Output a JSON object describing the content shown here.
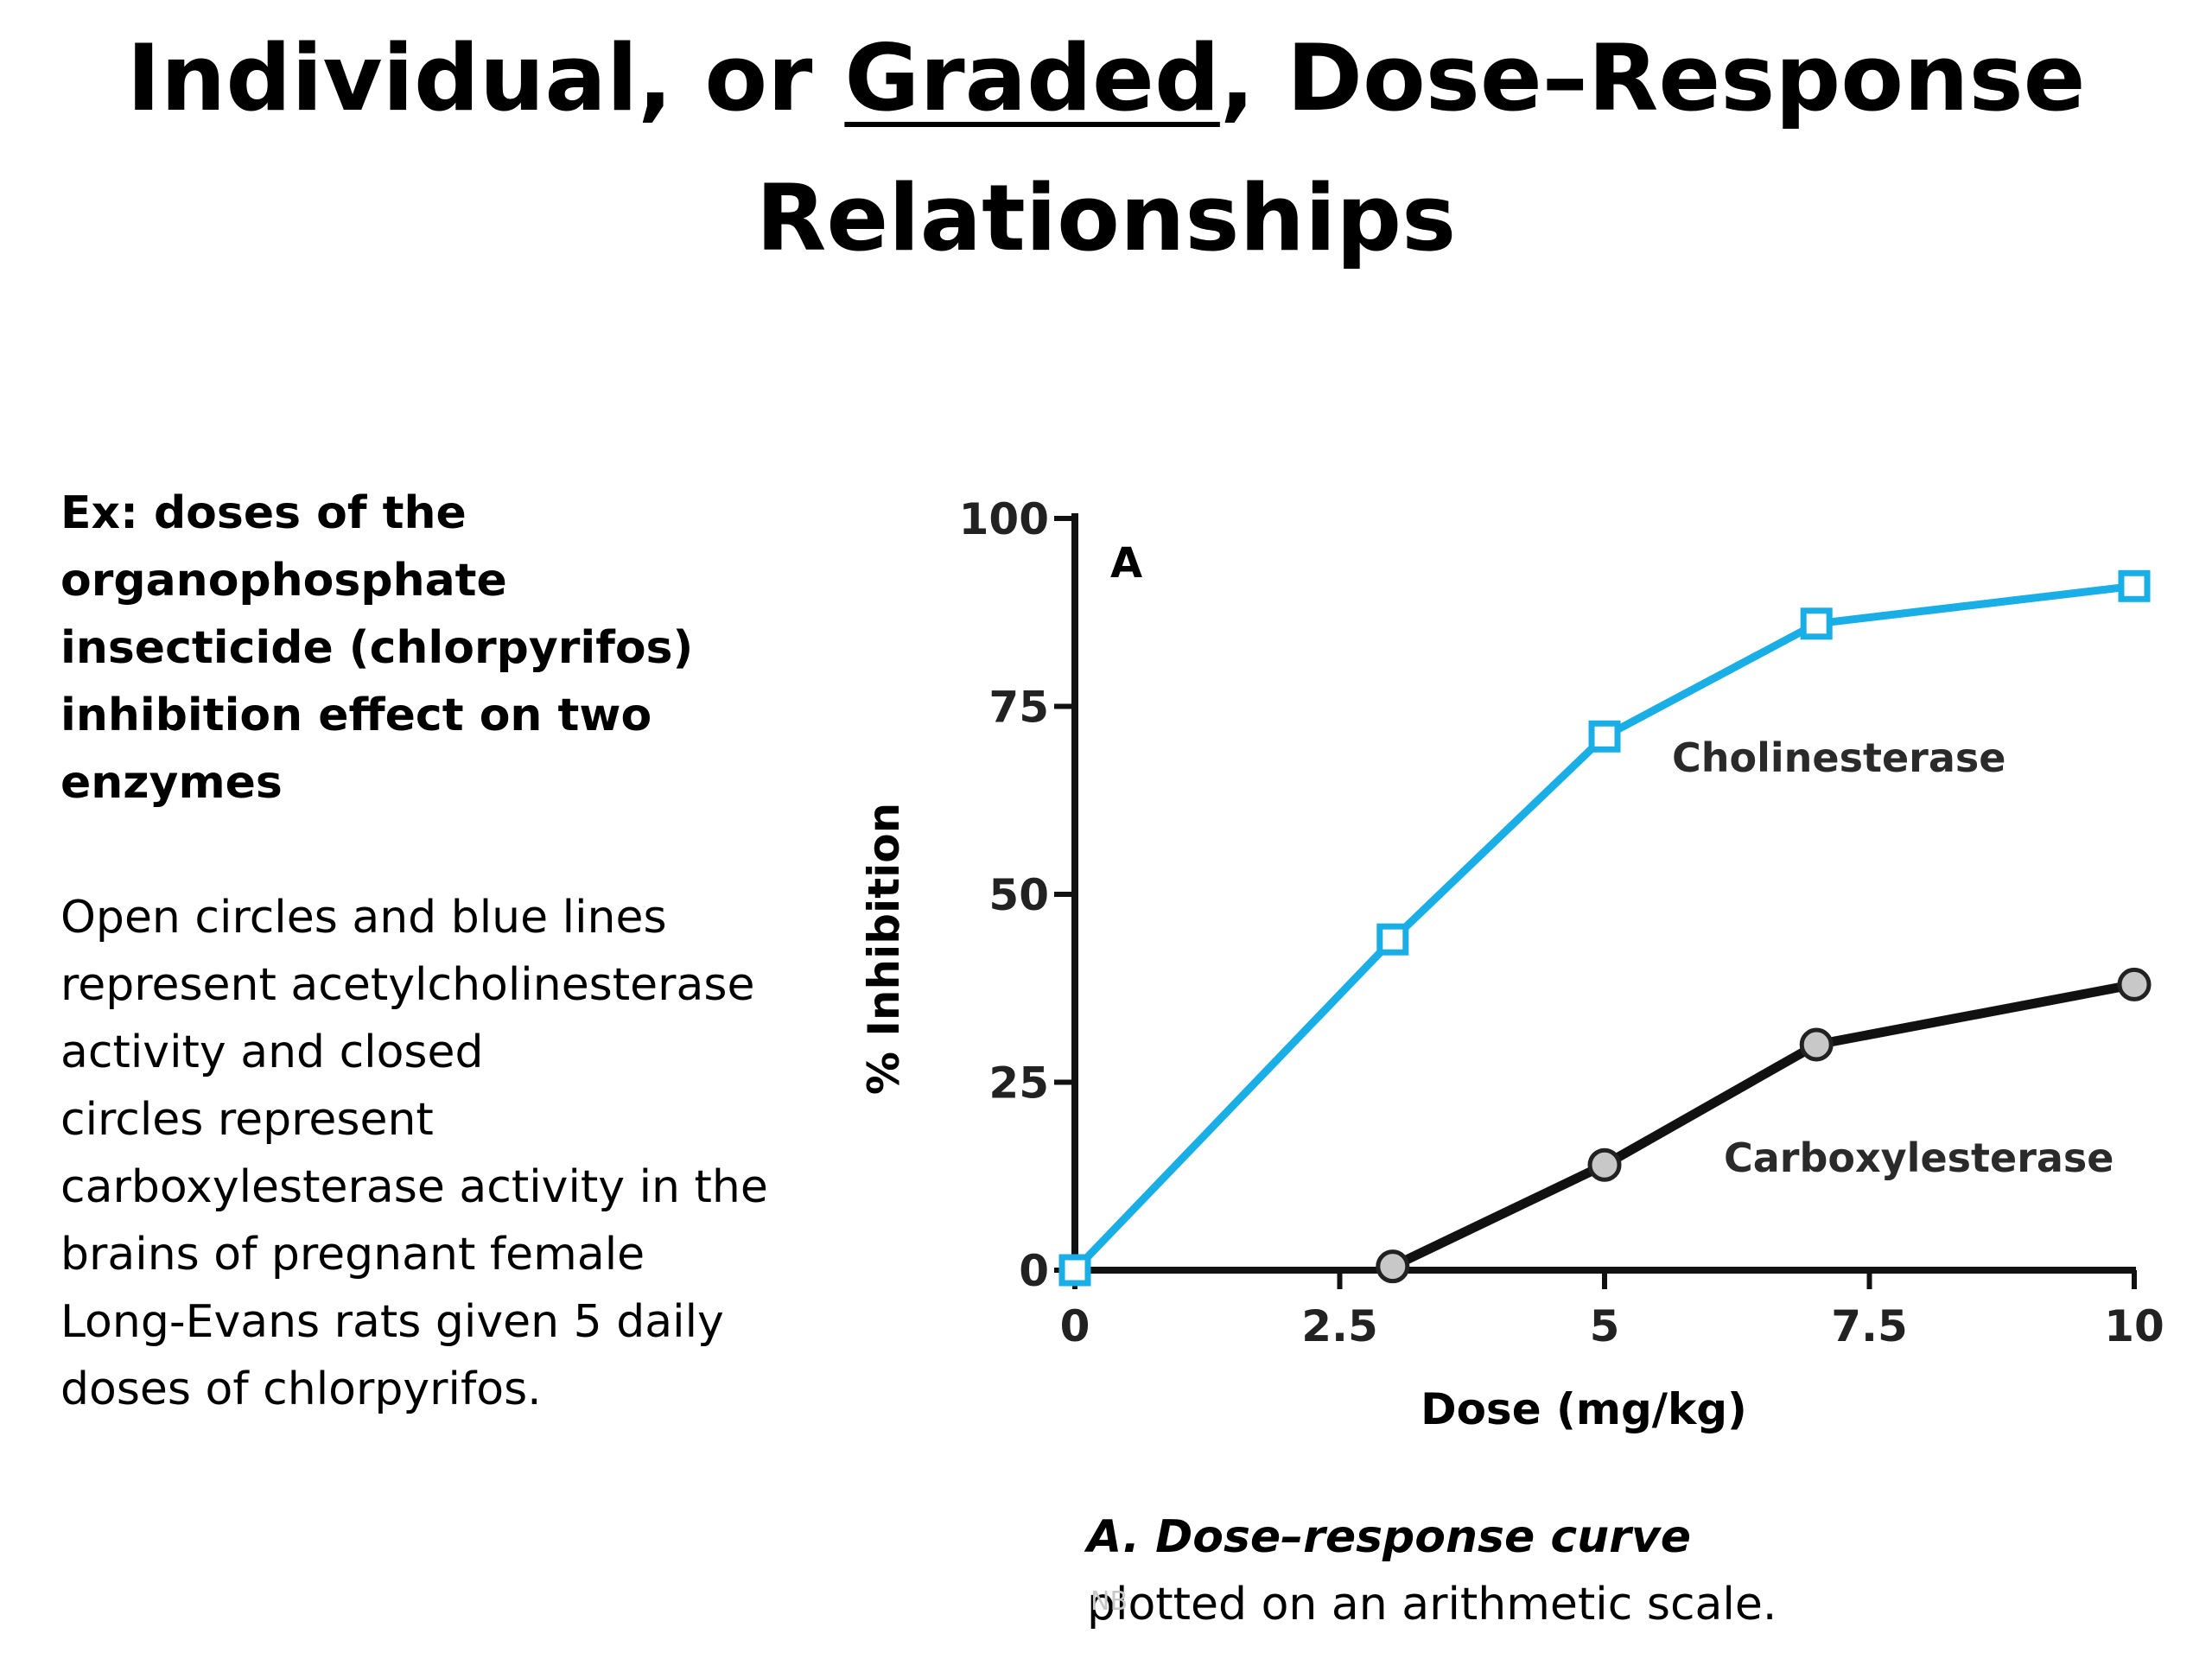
{
  "slide": {
    "title_part1": "Individual, or ",
    "title_underlined": "Graded",
    "title_part2": ", Dose–Response",
    "title_line2": "Relationships"
  },
  "left_text": {
    "lines_bold": [
      "Ex: doses of the",
      "organophosphate",
      "insecticide (chlorpyrifos)",
      "inhibition effect on two",
      "enzymes"
    ],
    "lines_regular": [
      "Open circles and blue lines",
      "represent acetylcholinesterase",
      "activity and closed",
      "circles represent",
      "carboxylesterase activity in the",
      "brains of pregnant female",
      "Long-Evans rats given 5 daily",
      "doses of chlorpyrifos."
    ]
  },
  "caption": {
    "title": "A. Dose–response curve",
    "text": "plotted on an arithmetic scale.",
    "watermark": "NB"
  },
  "chart_data": {
    "type": "line",
    "panel_label": "A",
    "xlabel": "Dose (mg/kg)",
    "ylabel": "% Inhibition",
    "xlim": [
      0,
      10
    ],
    "ylim": [
      0,
      100
    ],
    "xticks": [
      0,
      2.5,
      5,
      7.5,
      10
    ],
    "xtick_labels": [
      "0",
      "2.5",
      "5",
      "7.5",
      "10"
    ],
    "yticks": [
      0,
      25,
      50,
      75,
      100
    ],
    "ytick_labels": [
      "0",
      "25",
      "50",
      "75",
      "100"
    ],
    "grid": false,
    "series": [
      {
        "name": "Cholinesterase",
        "color": "#1aaee6",
        "marker": "open-square",
        "x": [
          0,
          3,
          5,
          7,
          10
        ],
        "y": [
          0,
          44,
          71,
          86,
          91
        ]
      },
      {
        "name": "Carboxylesterase",
        "color": "#111111",
        "marker": "grey-circle",
        "x": [
          3,
          5,
          7,
          10
        ],
        "y": [
          0.5,
          14,
          30,
          38
        ]
      }
    ]
  }
}
